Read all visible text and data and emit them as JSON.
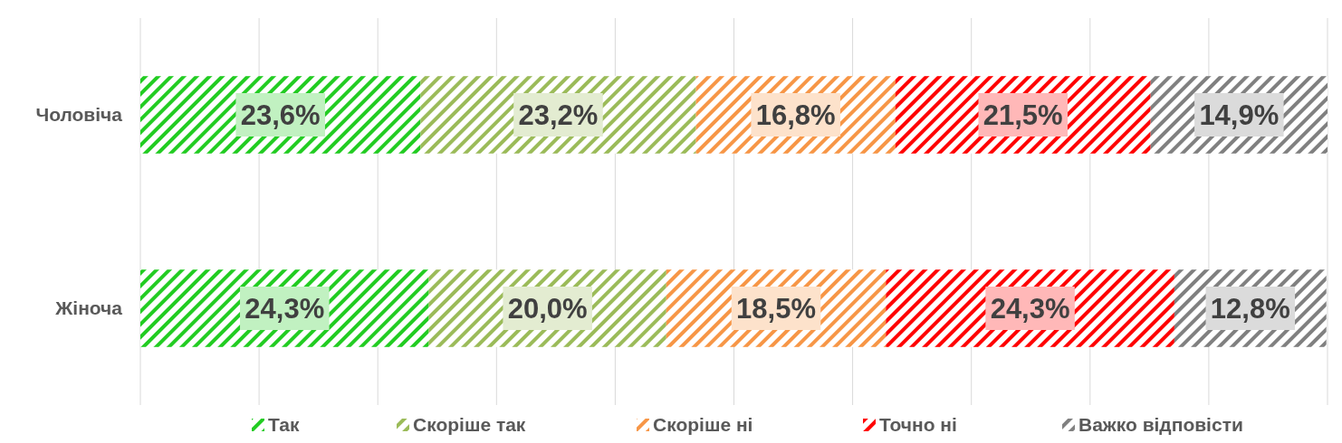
{
  "chart_data": {
    "type": "bar",
    "orientation": "horizontal",
    "stacked": true,
    "categories": [
      "Чоловіча",
      "Жіноча"
    ],
    "series": [
      {
        "name": "Так",
        "color": "#22cc22",
        "values": [
          23.6,
          24.3
        ],
        "value_labels": [
          "23,6%",
          "24,3%"
        ]
      },
      {
        "name": "Скоріше так",
        "color": "#9bbb59",
        "values": [
          23.2,
          20.0
        ],
        "value_labels": [
          "23,2%",
          "20,0%"
        ]
      },
      {
        "name": "Скоріше ні",
        "color": "#f79646",
        "values": [
          16.8,
          18.5
        ],
        "value_labels": [
          "16,8%",
          "18,5%"
        ]
      },
      {
        "name": "Точно ні",
        "color": "#ff0000",
        "values": [
          21.5,
          24.3
        ],
        "value_labels": [
          "21,5%",
          "24,3%"
        ]
      },
      {
        "name": "Важко відповісти",
        "color": "#808080",
        "values": [
          14.9,
          12.8
        ],
        "value_labels": [
          "14,9%",
          "12,8%"
        ]
      }
    ],
    "xlim": [
      0,
      100
    ],
    "xticks": [
      {
        "value": 0,
        "label": null
      },
      {
        "value": 10,
        "label": null
      },
      {
        "value": 20,
        "label": null
      },
      {
        "value": 30,
        "label": null
      },
      {
        "value": 40,
        "label": null
      },
      {
        "value": 50,
        "label": null
      },
      {
        "value": 60,
        "label": null
      },
      {
        "value": 70,
        "label": null
      },
      {
        "value": 80,
        "label": null
      },
      {
        "value": 90,
        "label": null
      },
      {
        "value": 100,
        "label": null
      }
    ],
    "tick_labels": "y",
    "grid": "x",
    "legend": "bottom"
  }
}
